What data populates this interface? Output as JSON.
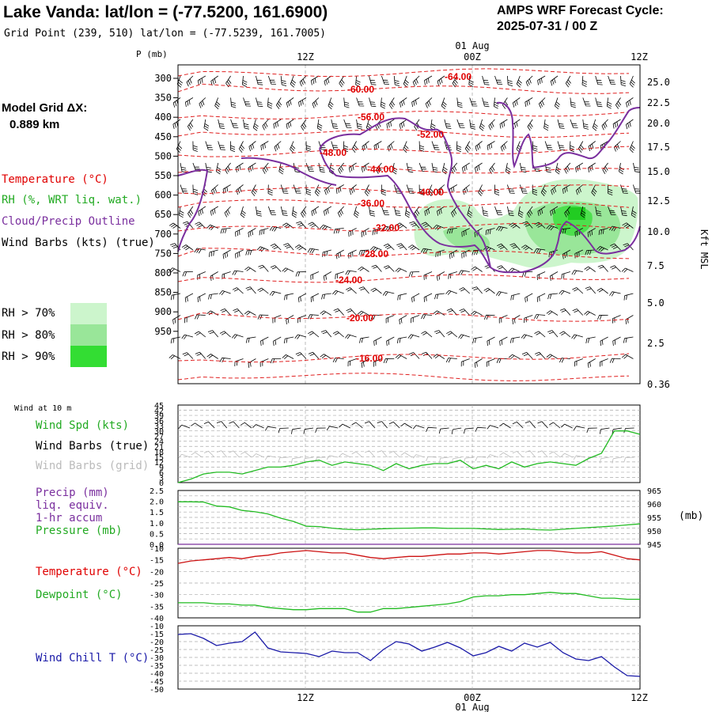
{
  "header": {
    "title": "Lake Vanda:  lat/lon = (-77.5200, 161.6900)",
    "grid_point": "Grid Point (239, 510) lat/lon = (-77.5239, 161.7005)",
    "cycle_line1": "AMPS WRF Forecast Cycle:",
    "cycle_line2": "2025-07-31 / 00  Z",
    "model_grid_label": "Model Grid ΔX:",
    "model_grid_value": "0.889 km"
  },
  "legend": {
    "temperature": "Temperature (°C)",
    "rh": "RH (%, WRT liq. wat.)",
    "cloud": "Cloud/Precip Outline",
    "wind": "Wind Barbs (kts) (true)",
    "rh70": "RH > 70%",
    "rh80": "RH > 80%",
    "rh90": "RH > 90%",
    "colors": {
      "temperature": "#e00000",
      "rh": "#22aa22",
      "cloud": "#7a2f9e",
      "rh70": "#ccf5cc",
      "rh80": "#99e699",
      "rh90": "#33dd33"
    }
  },
  "time_axis": {
    "labels": [
      "12Z",
      "00Z",
      "12Z"
    ],
    "date": "01 Aug"
  },
  "chart_data": [
    {
      "type": "contour",
      "name": "upper-air cross-section",
      "ylabel_left": "P (mb)",
      "ylabel_right": "Kft MSL",
      "pressure_ticks": [
        300,
        350,
        400,
        450,
        500,
        550,
        600,
        650,
        700,
        750,
        800,
        850,
        900,
        950
      ],
      "height_ticks": [
        "25.0",
        "22.5",
        "20.0",
        "17.5",
        "15.0",
        "12.5",
        "10.0",
        "7.5",
        "5.0",
        "2.5",
        "0.36"
      ],
      "temperature_labels": [
        "-64.00",
        "-60.00",
        "-56.00",
        "-52.00",
        "-48.00",
        "-44.00",
        "-40.00",
        "-36.00",
        "-32.00",
        "-28.00",
        "-24.00",
        "-20.00",
        "-16.00"
      ]
    },
    {
      "type": "line",
      "name": "Wind at 10 m",
      "title": "Wind at 10 m",
      "legend": [
        "Wind Spd (kts)",
        "Wind Barbs (true)",
        "Wind Barbs (grid)"
      ],
      "ylim": [
        0,
        45
      ],
      "y_ticks": [
        "45",
        "42",
        "39",
        "36",
        "33",
        "30",
        "27",
        "24",
        "21",
        "18",
        "15",
        "12",
        "9",
        "6",
        "3",
        "0"
      ],
      "wind_speed": [
        0,
        2,
        5,
        6,
        6,
        5,
        7,
        9,
        9,
        10,
        12,
        13,
        10,
        12,
        11,
        10,
        7,
        11,
        8,
        10,
        11,
        11,
        13,
        8,
        10,
        8,
        12,
        9,
        11,
        12,
        11,
        10,
        14,
        17,
        30,
        30,
        28
      ]
    },
    {
      "type": "line",
      "name": "Precip / Pressure",
      "legend": [
        "Precip (mm)",
        "liq. equiv.",
        "1-hr accum",
        "Pressure (mb)"
      ],
      "ylim_left": [
        0,
        2.5
      ],
      "ylim_right": [
        945,
        965
      ],
      "left_ticks": [
        "2.5",
        "2.0",
        "1.5",
        "1.0",
        "0.5",
        "0.0"
      ],
      "right_ticks": [
        "965",
        "960",
        "955",
        "950",
        "945"
      ],
      "right_unit": "(mb)",
      "precip": [
        0,
        0,
        0,
        0,
        0,
        0,
        0,
        0,
        0,
        0,
        0,
        0,
        0,
        0,
        0,
        0,
        0,
        0,
        0,
        0,
        0,
        0,
        0,
        0,
        0,
        0,
        0,
        0,
        0,
        0,
        0,
        0,
        0,
        0,
        0,
        0,
        0
      ],
      "pressure": [
        960.8,
        960.8,
        960.7,
        959.2,
        958.9,
        957.6,
        957.1,
        956.3,
        954.7,
        953.5,
        951.7,
        951.6,
        951.0,
        950.6,
        950.4,
        950.6,
        950.8,
        950.9,
        951.0,
        951.1,
        951.1,
        950.9,
        950.9,
        950.9,
        950.7,
        950.5,
        950.6,
        950.7,
        950.4,
        950.3,
        950.6,
        950.9,
        951.2,
        951.5,
        951.8,
        952.2,
        952.6
      ]
    },
    {
      "type": "line",
      "name": "Temperature / Dewpoint",
      "legend": [
        "Temperature (°C)",
        "Dewpoint (°C)"
      ],
      "ylim": [
        -40,
        -10
      ],
      "y_ticks": [
        "-10",
        "-15",
        "-20",
        "-25",
        "-30",
        "-35",
        "-40"
      ],
      "temperature": [
        -16.5,
        -15.5,
        -15,
        -14.5,
        -14,
        -14.5,
        -13.5,
        -13,
        -12,
        -11.5,
        -11,
        -11.5,
        -12,
        -12,
        -13,
        -14,
        -14.5,
        -14,
        -13.5,
        -13.5,
        -13,
        -12.5,
        -12.5,
        -12,
        -12,
        -12.5,
        -12,
        -11.5,
        -11,
        -11,
        -11.5,
        -12,
        -12,
        -11.5,
        -13,
        -14.5,
        -15
      ],
      "dewpoint": [
        -33.5,
        -33.5,
        -33.5,
        -34,
        -34,
        -34.5,
        -34.5,
        -35.5,
        -36,
        -36.5,
        -36.5,
        -36,
        -36,
        -36,
        -37.5,
        -37.5,
        -36,
        -36,
        -35.5,
        -35,
        -34.5,
        -34,
        -33,
        -31,
        -30.5,
        -30.5,
        -30,
        -30,
        -29.5,
        -29,
        -29.5,
        -29.5,
        -30.5,
        -31.5,
        -31.5,
        -32,
        -32
      ]
    },
    {
      "type": "line",
      "name": "Wind Chill",
      "legend": [
        "Wind Chill T (°C)"
      ],
      "ylim": [
        -50,
        -10
      ],
      "y_ticks": [
        "-10",
        "-15",
        "-20",
        "-25",
        "-30",
        "-35",
        "-40",
        "-45",
        "-50"
      ],
      "wind_chill": [
        -15.5,
        -15,
        -18,
        -22.5,
        -21,
        -20,
        -14,
        -24,
        -26.5,
        -27,
        -27.5,
        -29.5,
        -26,
        -27,
        -27,
        -32,
        -25,
        -20,
        -21.5,
        -26,
        -23.5,
        -20.5,
        -24,
        -29,
        -27,
        -23,
        -26,
        -21,
        -23.5,
        -20.5,
        -27,
        -31,
        -32,
        -29.5,
        -36,
        -41.5,
        -42
      ]
    }
  ]
}
